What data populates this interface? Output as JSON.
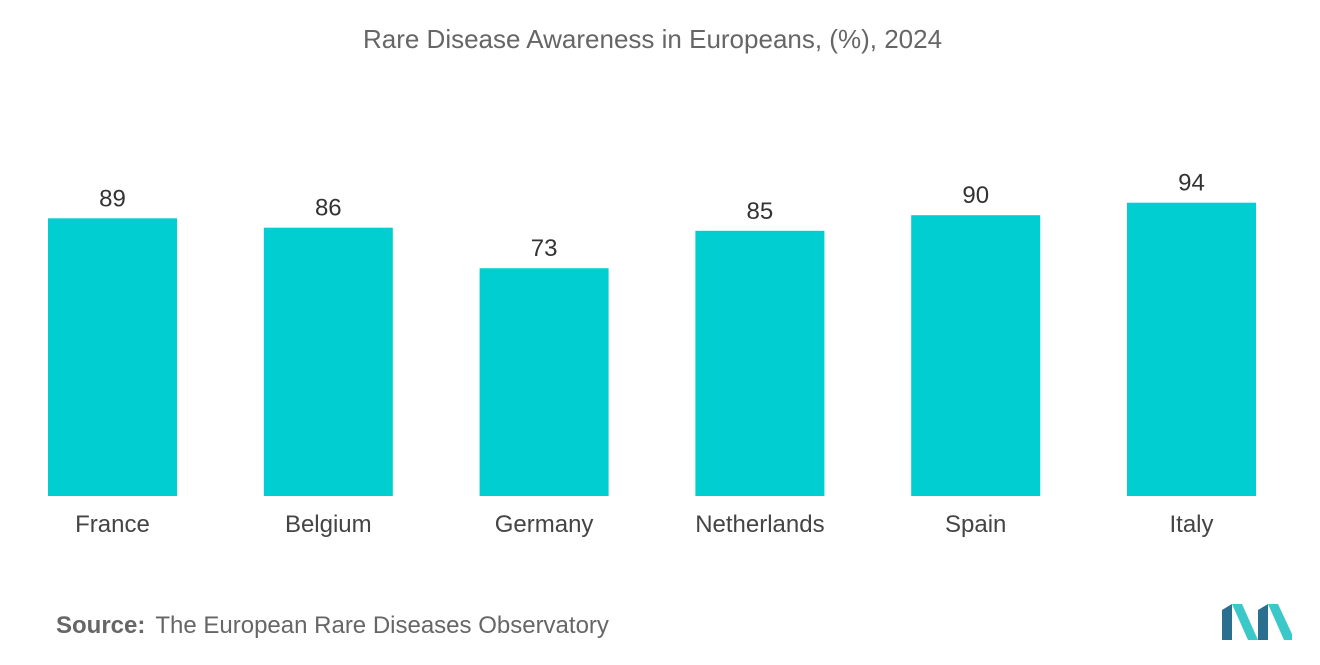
{
  "title": "Rare Disease Awareness in Europeans, (%), 2024",
  "source": {
    "label": "Source:",
    "text": "The European Rare Diseases Observatory"
  },
  "colors": {
    "bar": "#00CED1",
    "logo_dark": "#2a6f8f",
    "logo_light": "#3bc8c8"
  },
  "logo_icon": "mordor-intelligence-logo-icon",
  "chart_data": {
    "type": "bar",
    "title": "Rare Disease Awareness in Europeans, (%), 2024",
    "categories": [
      "France",
      "Belgium",
      "Germany",
      "Netherlands",
      "Spain",
      "Italy"
    ],
    "values": [
      89,
      86,
      73,
      85,
      90,
      94
    ],
    "value_labels": [
      "89",
      "86",
      "73",
      "85",
      "90",
      "94"
    ],
    "xlabel": "",
    "ylabel": "",
    "ylim": [
      0,
      100
    ],
    "grid": false,
    "legend": "none"
  }
}
